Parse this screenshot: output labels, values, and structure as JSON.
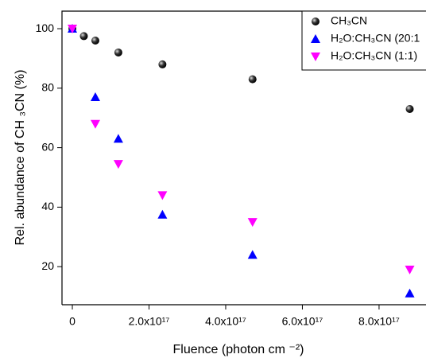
{
  "chart_data": {
    "type": "scatter",
    "xlabel": "Fluence (photon cm ⁻²)",
    "ylabel": "Rel. abundance of CH ₃CN (%)",
    "xlim": [
      -2.7e+16,
      9.1e+17
    ],
    "xticks": [
      0,
      {
        "value": 2e+17,
        "label": "2.0x10¹⁷"
      },
      {
        "value": 4e+17,
        "label": "4.0x10¹⁷"
      },
      {
        "value": 6e+17,
        "label": "6.0x10¹⁷"
      },
      {
        "value": 8e+17,
        "label": "8.0x10¹⁷"
      }
    ],
    "ylim": [
      7.2,
      105.9
    ],
    "yticks": [
      20,
      40,
      60,
      80,
      100
    ],
    "legend": "upper right",
    "series": [
      {
        "name": "CH₃CN",
        "color": "#000000",
        "marker": "circle",
        "x": [
          0,
          3e+16,
          6e+16,
          1.2e+17,
          2.35e+17,
          4.7e+17,
          8.8e+17
        ],
        "values": [
          100,
          97.5,
          96,
          92,
          88,
          83,
          73
        ]
      },
      {
        "name": "H₂O:CH₃CN (20:1",
        "color": "#0000ff",
        "marker": "triangle-up",
        "x": [
          0,
          6e+16,
          1.2e+17,
          2.35e+17,
          4.7e+17,
          8.8e+17
        ],
        "values": [
          100,
          77,
          63,
          37.5,
          24,
          11
        ]
      },
      {
        "name": "H₂O:CH₃CN (1:1)",
        "color": "#ff00ff",
        "marker": "triangle-down",
        "x": [
          0,
          6e+16,
          1.2e+17,
          2.35e+17,
          4.7e+17,
          8.8e+17
        ],
        "values": [
          100,
          68,
          54.5,
          44,
          35,
          19
        ]
      }
    ]
  }
}
